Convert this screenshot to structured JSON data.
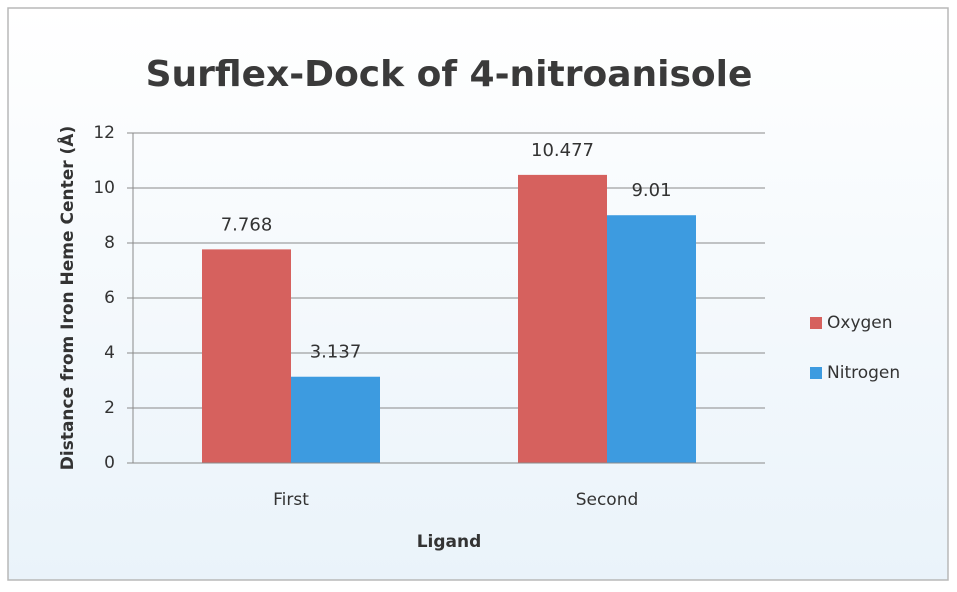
{
  "chart_data": {
    "type": "bar",
    "title": "Surflex-Dock of 4-nitroanisole",
    "y_label": "Distance from Iron Heme Center (Å)",
    "x_label": "Ligand",
    "categories": [
      "First",
      "Second"
    ],
    "series": [
      {
        "name": "Oxygen",
        "color": "#d6615e",
        "values": [
          7.768,
          10.477
        ]
      },
      {
        "name": "Nitrogen",
        "color": "#3d9be0",
        "values": [
          3.137,
          9.01
        ]
      }
    ],
    "ylim": [
      0,
      12
    ],
    "yticks": [
      0,
      2,
      4,
      6,
      8,
      10,
      12
    ],
    "grid": true,
    "legend": "right"
  }
}
